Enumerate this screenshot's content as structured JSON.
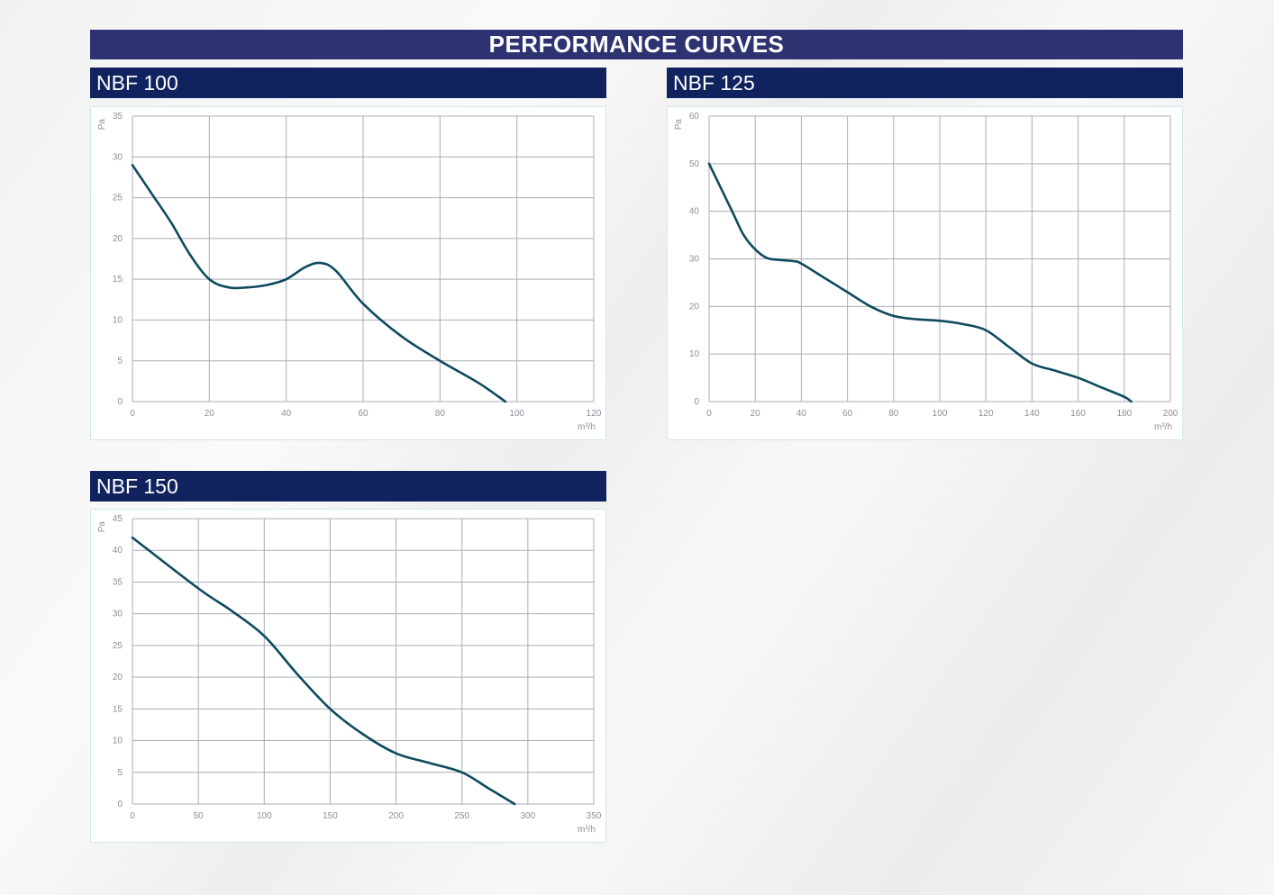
{
  "page_title": "PERFORMANCE CURVES",
  "colors": {
    "title_bar": "#2d3270",
    "header_bar": "#10235e",
    "curve": "#0e4a5e",
    "grid": "#a9adb3"
  },
  "chart_data": [
    {
      "type": "line",
      "title": "NBF 100",
      "ylabel": "Pa",
      "xlabel": "m³/h",
      "xlim": [
        0,
        120
      ],
      "ylim": [
        0,
        35
      ],
      "xticks": [
        0,
        20,
        40,
        60,
        80,
        100,
        120
      ],
      "yticks": [
        0,
        5,
        10,
        15,
        20,
        25,
        30,
        35
      ],
      "grid": true,
      "x": [
        0,
        5,
        10,
        15,
        20,
        25,
        30,
        35,
        40,
        45,
        49,
        53,
        60,
        70,
        80,
        90,
        97
      ],
      "y": [
        29,
        25.5,
        22,
        18,
        15,
        14,
        14,
        14.3,
        15,
        16.5,
        17,
        16,
        12,
        8,
        5,
        2.3,
        0
      ]
    },
    {
      "type": "line",
      "title": "NBF 125",
      "ylabel": "Pa",
      "xlabel": "m³/h",
      "xlim": [
        0,
        200
      ],
      "ylim": [
        0,
        60
      ],
      "xticks": [
        0,
        20,
        40,
        60,
        80,
        100,
        120,
        140,
        160,
        180,
        200
      ],
      "yticks": [
        0,
        10,
        20,
        30,
        40,
        50,
        60
      ],
      "grid": true,
      "x": [
        0,
        10,
        15,
        20,
        25,
        30,
        37,
        40,
        50,
        60,
        70,
        80,
        90,
        100,
        110,
        120,
        130,
        140,
        150,
        160,
        170,
        180,
        183
      ],
      "y": [
        50,
        40,
        35,
        32,
        30.2,
        29.8,
        29.5,
        29,
        26,
        23,
        20,
        18,
        17.3,
        17,
        16.3,
        15,
        11.5,
        8,
        6.5,
        5,
        3,
        1,
        0
      ]
    },
    {
      "type": "line",
      "title": "NBF 150",
      "ylabel": "Pa",
      "xlabel": "m³/h",
      "xlim": [
        0,
        350
      ],
      "ylim": [
        0,
        45
      ],
      "xticks": [
        0,
        50,
        100,
        150,
        200,
        250,
        300,
        350
      ],
      "yticks": [
        0,
        5,
        10,
        15,
        20,
        25,
        30,
        35,
        40,
        45
      ],
      "grid": true,
      "x": [
        0,
        50,
        75,
        100,
        125,
        150,
        175,
        200,
        225,
        250,
        270,
        290
      ],
      "y": [
        42,
        34,
        30.5,
        26.5,
        20.5,
        15,
        11,
        8,
        6.5,
        5,
        2.5,
        0
      ]
    }
  ]
}
